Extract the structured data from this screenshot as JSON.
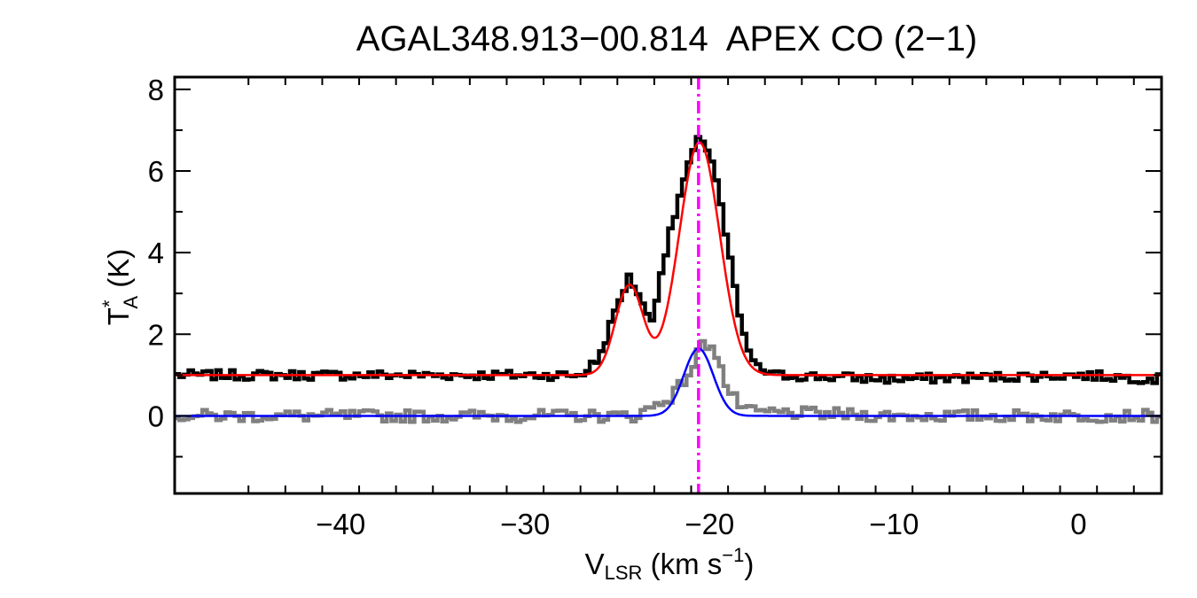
{
  "chart_data": {
    "type": "line",
    "title": "AGAL348.913−00.814  APEX CO (2−1)",
    "xlabel": {
      "main": "V",
      "sub": "LSR",
      "rest": " (km s",
      "sup": "−1",
      "close": ")"
    },
    "ylabel": {
      "main": "T",
      "sup": "*",
      "sub": "A",
      "rest": " (K)"
    },
    "xlim": [
      -49.0,
      4.5
    ],
    "ylim": [
      -1.9,
      8.3
    ],
    "x_ticks": [
      -40,
      -30,
      -20,
      -10,
      0
    ],
    "x_tick_labels": [
      "−40",
      "−30",
      "−20",
      "−10",
      "0"
    ],
    "y_ticks": [
      0,
      2,
      4,
      6,
      8
    ],
    "y_tick_labels": [
      "0",
      "2",
      "4",
      "6",
      "8"
    ],
    "grid": false,
    "reference_line": {
      "x": -20.6,
      "color": "#ff00ff",
      "style": "dash-dot"
    },
    "series": [
      {
        "color": "#000000",
        "style": "histogram",
        "x_step": 0.25,
        "points": [
          [
            -48.0,
            1.0
          ],
          [
            -40.0,
            1.0
          ],
          [
            -30.0,
            1.0
          ],
          [
            -27.0,
            1.0
          ],
          [
            -26.0,
            1.4
          ],
          [
            -25.0,
            2.7
          ],
          [
            -24.4,
            3.4
          ],
          [
            -23.8,
            3.0
          ],
          [
            -23.2,
            2.2
          ],
          [
            -22.5,
            3.8
          ],
          [
            -21.5,
            5.6
          ],
          [
            -20.7,
            6.7
          ],
          [
            -20.3,
            6.8
          ],
          [
            -19.7,
            6.0
          ],
          [
            -19.0,
            4.1
          ],
          [
            -18.2,
            2.0
          ],
          [
            -17.5,
            1.2
          ],
          [
            -16.5,
            1.0
          ],
          [
            -10.0,
            0.9
          ],
          [
            0.0,
            1.0
          ],
          [
            4.5,
            0.9
          ]
        ],
        "noise": 0.12
      },
      {
        "color": "#808080",
        "style": "histogram",
        "x_step": 0.25,
        "points": [
          [
            -48.0,
            0.0
          ],
          [
            -30.0,
            0.0
          ],
          [
            -24.0,
            0.0
          ],
          [
            -22.0,
            0.5
          ],
          [
            -21.0,
            1.1
          ],
          [
            -20.5,
            1.7
          ],
          [
            -19.8,
            1.8
          ],
          [
            -19.0,
            0.6
          ],
          [
            -18.0,
            0.1
          ],
          [
            -10.0,
            0.0
          ],
          [
            4.5,
            0.0
          ]
        ],
        "noise": 0.15
      },
      {
        "color": "#ff0000",
        "style": "fit",
        "baseline": 1.0,
        "components": [
          {
            "amp": 2.2,
            "center": -24.35,
            "sigma": 0.75
          },
          {
            "amp": 5.7,
            "center": -20.55,
            "sigma": 1.1
          }
        ]
      },
      {
        "color": "#0000ff",
        "style": "fit",
        "baseline": 0.0,
        "components": [
          {
            "amp": 1.65,
            "center": -20.6,
            "sigma": 0.8
          }
        ]
      }
    ]
  }
}
